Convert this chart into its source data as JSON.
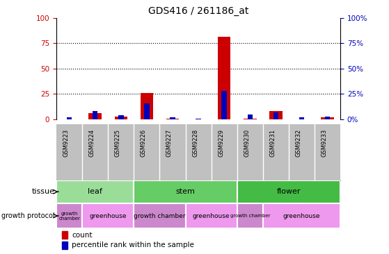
{
  "title": "GDS416 / 261186_at",
  "samples": [
    "GSM9223",
    "GSM9224",
    "GSM9225",
    "GSM9226",
    "GSM9227",
    "GSM9228",
    "GSM9229",
    "GSM9230",
    "GSM9231",
    "GSM9232",
    "GSM9233"
  ],
  "count_values": [
    0,
    6,
    3,
    26,
    1,
    0,
    81,
    1,
    8,
    0,
    2
  ],
  "percentile_values": [
    2,
    8,
    4,
    16,
    2,
    1,
    28,
    5,
    7,
    2,
    3
  ],
  "tissue_groups": [
    {
      "label": "leaf",
      "start": 0,
      "end": 3,
      "color": "#99DD99"
    },
    {
      "label": "stem",
      "start": 3,
      "end": 7,
      "color": "#66CC66"
    },
    {
      "label": "flower",
      "start": 7,
      "end": 11,
      "color": "#44BB44"
    }
  ],
  "growth_groups": [
    {
      "label": "growth\nchamber",
      "start": 0,
      "end": 1,
      "color": "#CC88CC"
    },
    {
      "label": "greenhouse",
      "start": 1,
      "end": 3,
      "color": "#EE99EE"
    },
    {
      "label": "growth chamber",
      "start": 3,
      "end": 5,
      "color": "#CC88CC"
    },
    {
      "label": "greenhouse",
      "start": 5,
      "end": 7,
      "color": "#EE99EE"
    },
    {
      "label": "growth chamber",
      "start": 7,
      "end": 8,
      "color": "#CC88CC"
    },
    {
      "label": "greenhouse",
      "start": 8,
      "end": 11,
      "color": "#EE99EE"
    }
  ],
  "ylim": [
    0,
    100
  ],
  "yticks": [
    0,
    25,
    50,
    75,
    100
  ],
  "count_color": "#CC0000",
  "percentile_color": "#0000BB",
  "background_color": "#ffffff",
  "sample_box_color": "#C0C0C0",
  "tissue_label": "tissue",
  "growth_label": "growth protocol",
  "legend_count": "count",
  "legend_percentile": "percentile rank within the sample",
  "count_bar_width": 0.5,
  "percentile_bar_width": 0.2
}
